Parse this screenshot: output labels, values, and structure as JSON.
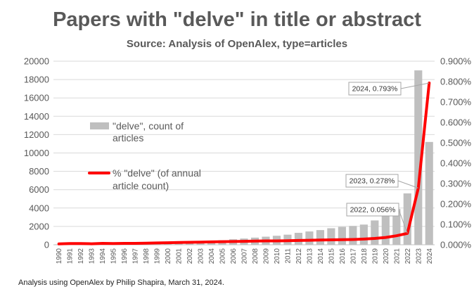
{
  "header": {
    "title": "Papers with \"delve\" in title or abstract",
    "subtitle": "Source: Analysis of OpenAlex, type=articles"
  },
  "footer": {
    "note": "Analysis using OpenAlex by Philip Shapira, March 31, 2024."
  },
  "chart_data": {
    "type": "bar",
    "title": "Papers with \"delve\" in title or abstract",
    "subtitle": "Source: Analysis of OpenAlex, type=articles",
    "categories": [
      "1990",
      "1991",
      "1992",
      "1993",
      "1994",
      "1995",
      "1996",
      "1997",
      "1998",
      "1999",
      "2000",
      "2001",
      "2002",
      "2003",
      "2004",
      "2005",
      "2006",
      "2007",
      "2008",
      "2009",
      "2010",
      "2011",
      "2012",
      "2013",
      "2014",
      "2015",
      "2016",
      "2017",
      "2018",
      "2019",
      "2020",
      "2021",
      "2022",
      "2023",
      "2024"
    ],
    "series": [
      {
        "name": "\"delve\", count of articles",
        "type": "bar",
        "axis": "left",
        "color": "#bfbfbf",
        "values": [
          50,
          60,
          70,
          80,
          90,
          100,
          120,
          140,
          160,
          190,
          220,
          260,
          300,
          350,
          420,
          500,
          600,
          680,
          780,
          880,
          980,
          1100,
          1300,
          1450,
          1600,
          1800,
          1950,
          2050,
          2200,
          2650,
          3200,
          3900,
          5600,
          19000,
          11200
        ]
      },
      {
        "name": "% \"delve\" (of annual article count)",
        "type": "line",
        "axis": "right",
        "color": "#ff0000",
        "values": [
          0.004,
          0.006,
          0.006,
          0.005,
          0.007,
          0.006,
          0.007,
          0.007,
          0.008,
          0.009,
          0.01,
          0.011,
          0.012,
          0.013,
          0.014,
          0.015,
          0.016,
          0.017,
          0.018,
          0.019,
          0.019,
          0.02,
          0.021,
          0.022,
          0.023,
          0.024,
          0.025,
          0.026,
          0.028,
          0.031,
          0.036,
          0.044,
          0.056,
          0.278,
          0.793
        ]
      }
    ],
    "y_left": {
      "min": 0,
      "max": 20000,
      "step": 2000,
      "tick_labels": [
        "0",
        "2000",
        "4000",
        "6000",
        "8000",
        "10000",
        "12000",
        "14000",
        "16000",
        "18000",
        "20000"
      ]
    },
    "y_right": {
      "min": 0,
      "max": 0.9,
      "step": 0.1,
      "tick_labels": [
        "0.000%",
        "0.100%",
        "0.200%",
        "0.300%",
        "0.400%",
        "0.500%",
        "0.600%",
        "0.700%",
        "0.800%",
        "0.900%"
      ]
    },
    "gridlines": true,
    "legend": {
      "placement": "inside-left",
      "bar_label_lines": [
        "\"delve\", count of",
        "articles"
      ],
      "line_label_lines": [
        "% \"delve\" (of annual",
        "article count)"
      ]
    },
    "annotations": [
      {
        "category": "2022",
        "value": 0.056,
        "text": "2022, 0.056%"
      },
      {
        "category": "2023",
        "value": 0.278,
        "text": "2023, 0.278%"
      },
      {
        "category": "2024",
        "value": 0.793,
        "text": "2024, 0.793%"
      }
    ]
  }
}
